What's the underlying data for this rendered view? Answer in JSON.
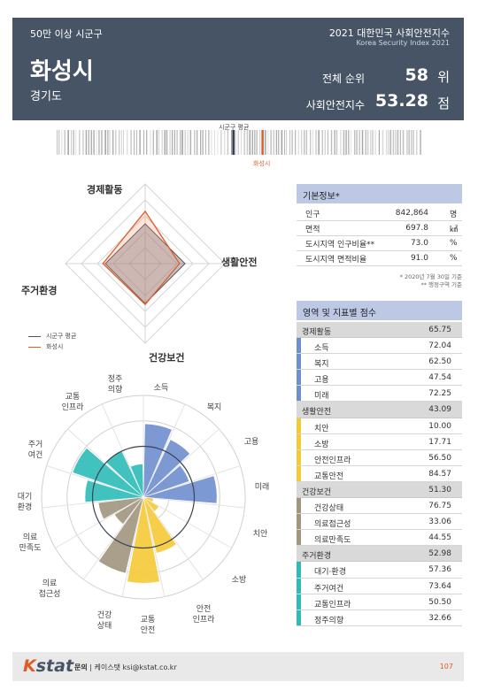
{
  "header": {
    "category": "50만 이상 시군구",
    "title": "2021 대한민국 사회안전지수",
    "subtitle": "Korea Security Index 2021",
    "city": "화성시",
    "province": "경기도",
    "rank_label": "전체 순위",
    "rank_value": "58",
    "rank_unit": "위",
    "index_label": "사회안전지수",
    "index_value": "53.28",
    "index_unit": "점"
  },
  "strip": {
    "avg_label": "시군구 평균",
    "city_label": "화성시",
    "avg_position_fraction": 0.484,
    "city_position_fraction": 0.564
  },
  "radar": {
    "axes": [
      "경제활동",
      "생활안전",
      "건강보건",
      "주거환경"
    ],
    "legend": {
      "avg_label": "시군구 평균",
      "city_label": "화성시"
    },
    "scale_max": 100,
    "avg_values": [
      50,
      50,
      50,
      50
    ],
    "city_values": [
      65.75,
      43.09,
      51.3,
      52.98
    ]
  },
  "polar": {
    "labels": [
      "소득",
      "복지",
      "고용",
      "미래",
      "치안",
      "소방",
      "안전\n인프라",
      "교통\n안전",
      "건강\n상태",
      "의료\n접근성",
      "의료\n만족도",
      "대기\n환경",
      "주거\n여건",
      "교통\n인프라",
      "정주\n의향"
    ],
    "values": [
      72.04,
      62.5,
      47.54,
      72.25,
      10.0,
      17.71,
      56.5,
      84.57,
      76.75,
      33.06,
      44.55,
      57.36,
      73.64,
      50.5,
      32.66
    ],
    "scale_max": 100,
    "colors": [
      "#6f8ecf",
      "#6f8ecf",
      "#6f8ecf",
      "#6f8ecf",
      "#f5c935",
      "#f5c935",
      "#f5c935",
      "#f5c935",
      "#a0957d",
      "#a0957d",
      "#a0957d",
      "#2ebbb8",
      "#2ebbb8",
      "#2ebbb8",
      "#2ebbb8"
    ]
  },
  "basic": {
    "title": "기본정보*",
    "rows": [
      {
        "label": "인구",
        "value": "842,864",
        "unit": "명"
      },
      {
        "label": "면적",
        "value": "697.8",
        "unit": "㎢"
      },
      {
        "label": "도시지역 인구비율**",
        "value": "73.0",
        "unit": "%"
      },
      {
        "label": "도시지역 면적비율",
        "value": "91.0",
        "unit": "%"
      }
    ],
    "note1": "* 2020년 7월 30일 기준",
    "note2": "** 행정구역 기준"
  },
  "scores": {
    "title": "영역 및 지표별 점수",
    "rows": [
      {
        "label": "경제활동",
        "value": "65.75",
        "type": "group"
      },
      {
        "label": "소득",
        "value": "72.04",
        "type": "sub",
        "color": "#6f8ecf"
      },
      {
        "label": "복지",
        "value": "62.50",
        "type": "sub",
        "color": "#6f8ecf"
      },
      {
        "label": "고용",
        "value": "47.54",
        "type": "sub",
        "color": "#6f8ecf"
      },
      {
        "label": "미래",
        "value": "72.25",
        "type": "sub",
        "color": "#6f8ecf"
      },
      {
        "label": "생활안전",
        "value": "43.09",
        "type": "group"
      },
      {
        "label": "치안",
        "value": "10.00",
        "type": "sub",
        "color": "#f5c935"
      },
      {
        "label": "소방",
        "value": "17.71",
        "type": "sub",
        "color": "#f5c935"
      },
      {
        "label": "안전인프라",
        "value": "56.50",
        "type": "sub",
        "color": "#f5c935"
      },
      {
        "label": "교통안전",
        "value": "84.57",
        "type": "sub",
        "color": "#f5c935"
      },
      {
        "label": "건강보건",
        "value": "51.30",
        "type": "group"
      },
      {
        "label": "건강상태",
        "value": "76.75",
        "type": "sub",
        "color": "#a0957d"
      },
      {
        "label": "의료접근성",
        "value": "33.06",
        "type": "sub",
        "color": "#a0957d"
      },
      {
        "label": "의료만족도",
        "value": "44.55",
        "type": "sub",
        "color": "#a0957d"
      },
      {
        "label": "주거환경",
        "value": "52.98",
        "type": "group"
      },
      {
        "label": "대기·환경",
        "value": "57.36",
        "type": "sub",
        "color": "#2ebbb8"
      },
      {
        "label": "주거여건",
        "value": "73.64",
        "type": "sub",
        "color": "#2ebbb8"
      },
      {
        "label": "교통인프라",
        "value": "50.50",
        "type": "sub",
        "color": "#2ebbb8"
      },
      {
        "label": "정주의향",
        "value": "32.66",
        "type": "sub",
        "color": "#2ebbb8"
      }
    ]
  },
  "footer": {
    "logo_k": "K",
    "logo_rest": "stat",
    "contact_label": "문의",
    "contact_text": "| 케이스탯 ksi@kstat.co.kr",
    "page": "107"
  }
}
